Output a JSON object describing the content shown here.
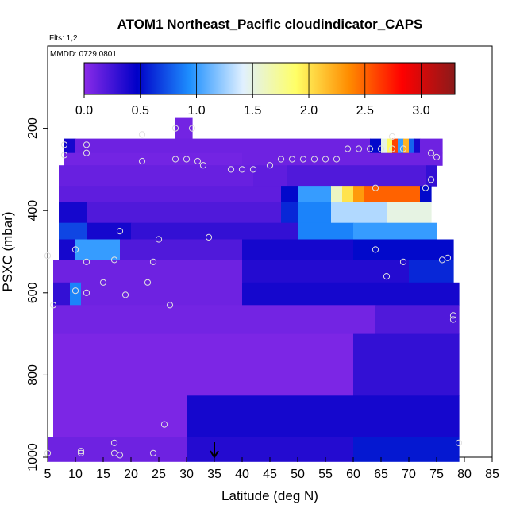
{
  "chart_data": {
    "type": "heatmap",
    "title": "ATOM1 Northeast_Pacific cloudindicator_CAPS",
    "flights_label": "Flts: 1,2",
    "date_label": "MMDD: 0729,0801",
    "xlabel": "Latitude (deg N)",
    "ylabel": "PSXC (mbar)",
    "xlim": [
      5,
      85
    ],
    "ylim": [
      1000,
      0
    ],
    "x_ticks": [
      5,
      10,
      15,
      20,
      25,
      30,
      35,
      40,
      45,
      50,
      55,
      60,
      65,
      70,
      75,
      80,
      85
    ],
    "y_ticks": [
      200,
      400,
      600,
      800,
      1000
    ],
    "colorbar": {
      "range": [
        0,
        3.3
      ],
      "ticks": [
        "0.0",
        "0.5",
        "1.0",
        "1.5",
        "2.0",
        "2.5",
        "3.0"
      ],
      "tick_values": [
        0,
        0.5,
        1.0,
        1.5,
        2.0,
        2.5,
        3.0
      ],
      "colors": [
        "#8b2be8",
        "#0000c8",
        "#1e90ff",
        "#e0f0ff",
        "#ffff66",
        "#ff8c00",
        "#ff0000",
        "#8b1a1a"
      ]
    },
    "marker_latitude": 35,
    "colors": {
      "axis": "#000000",
      "circle": "#e0e0e0",
      "background": "#ffffff"
    },
    "layers": [
      {
        "p": [
          175,
          225
        ],
        "cells": [
          [
            28,
            31,
            0.08
          ]
        ]
      },
      {
        "p": [
          225,
          260
        ],
        "cells": [
          [
            8,
            10,
            0.4
          ],
          [
            10,
            63,
            0.1
          ],
          [
            63,
            65,
            0.5
          ],
          [
            65,
            66,
            1.5
          ],
          [
            66,
            67,
            1.9
          ],
          [
            67,
            68,
            2.6
          ],
          [
            68,
            69,
            1.0
          ],
          [
            69,
            70,
            2.2
          ],
          [
            70,
            71,
            0.8
          ],
          [
            71,
            72,
            0.4
          ],
          [
            72,
            76,
            0.1
          ]
        ]
      },
      {
        "p": [
          260,
          290
        ],
        "cells": [
          [
            8,
            40,
            0.08
          ],
          [
            40,
            76,
            0.1
          ]
        ]
      },
      {
        "p": [
          290,
          340
        ],
        "cells": [
          [
            7,
            42,
            0.12
          ],
          [
            42,
            48,
            0.15
          ],
          [
            48,
            73,
            0.2
          ],
          [
            73,
            75,
            0.3
          ]
        ]
      },
      {
        "p": [
          340,
          380
        ],
        "cells": [
          [
            7,
            47,
            0.15
          ],
          [
            47,
            50,
            0.5
          ],
          [
            50,
            56,
            1.0
          ],
          [
            56,
            58,
            1.6
          ],
          [
            58,
            60,
            2.0
          ],
          [
            60,
            62,
            2.3
          ],
          [
            62,
            72,
            2.5
          ],
          [
            72,
            74,
            0.5
          ]
        ]
      },
      {
        "p": [
          380,
          430
        ],
        "cells": [
          [
            7,
            12,
            0.4
          ],
          [
            12,
            47,
            0.2
          ],
          [
            47,
            50,
            0.6
          ],
          [
            50,
            56,
            0.9
          ],
          [
            56,
            66,
            1.3
          ],
          [
            66,
            74,
            1.5
          ]
        ]
      },
      {
        "p": [
          430,
          470
        ],
        "cells": [
          [
            7,
            12,
            0.7
          ],
          [
            12,
            20,
            0.4
          ],
          [
            20,
            50,
            0.3
          ],
          [
            50,
            60,
            0.9
          ],
          [
            60,
            75,
            1.0
          ]
        ]
      },
      {
        "p": [
          470,
          520
        ],
        "cells": [
          [
            7,
            10,
            0.4
          ],
          [
            10,
            18,
            1.0
          ],
          [
            18,
            40,
            0.2
          ],
          [
            40,
            60,
            0.4
          ],
          [
            60,
            78,
            0.5
          ]
        ]
      },
      {
        "p": [
          520,
          575
        ],
        "cells": [
          [
            6,
            40,
            0.1
          ],
          [
            40,
            70,
            0.35
          ],
          [
            70,
            78,
            0.6
          ]
        ]
      },
      {
        "p": [
          575,
          630
        ],
        "cells": [
          [
            6,
            9,
            0.3
          ],
          [
            9,
            11,
            0.9
          ],
          [
            11,
            40,
            0.1
          ],
          [
            40,
            79,
            0.4
          ]
        ]
      },
      {
        "p": [
          630,
          700
        ],
        "cells": [
          [
            6,
            64,
            0.08
          ],
          [
            64,
            79,
            0.2
          ]
        ]
      },
      {
        "p": [
          700,
          850
        ],
        "cells": [
          [
            6,
            60,
            0.05
          ],
          [
            60,
            79,
            0.3
          ]
        ]
      },
      {
        "p": [
          850,
          950
        ],
        "cells": [
          [
            6,
            30,
            0.05
          ],
          [
            30,
            79,
            0.4
          ]
        ]
      },
      {
        "p": [
          950,
          1010
        ],
        "cells": [
          [
            5,
            30,
            0.1
          ],
          [
            30,
            60,
            0.35
          ],
          [
            60,
            79,
            0.55
          ]
        ]
      }
    ],
    "circles": [
      [
        8,
        240
      ],
      [
        8,
        265
      ],
      [
        12,
        240
      ],
      [
        12,
        260
      ],
      [
        22,
        215
      ],
      [
        22,
        280
      ],
      [
        28,
        200
      ],
      [
        31,
        200
      ],
      [
        28,
        275
      ],
      [
        30,
        275
      ],
      [
        32,
        280
      ],
      [
        33,
        290
      ],
      [
        38,
        300
      ],
      [
        40,
        300
      ],
      [
        42,
        300
      ],
      [
        45,
        290
      ],
      [
        47,
        275
      ],
      [
        49,
        275
      ],
      [
        51,
        275
      ],
      [
        53,
        275
      ],
      [
        55,
        275
      ],
      [
        57,
        275
      ],
      [
        59,
        250
      ],
      [
        61,
        250
      ],
      [
        63,
        250
      ],
      [
        65,
        250
      ],
      [
        67,
        250
      ],
      [
        69,
        250
      ],
      [
        67,
        220
      ],
      [
        74,
        260
      ],
      [
        75,
        270
      ],
      [
        64,
        345
      ],
      [
        73,
        345
      ],
      [
        74,
        325
      ],
      [
        10,
        495
      ],
      [
        18,
        450
      ],
      [
        25,
        470
      ],
      [
        34,
        465
      ],
      [
        64,
        495
      ],
      [
        5,
        510
      ],
      [
        12,
        525
      ],
      [
        17,
        520
      ],
      [
        24,
        525
      ],
      [
        69,
        525
      ],
      [
        66,
        560
      ],
      [
        77,
        515
      ],
      [
        76,
        520
      ],
      [
        15,
        575
      ],
      [
        23,
        575
      ],
      [
        10,
        595
      ],
      [
        12,
        600
      ],
      [
        19,
        605
      ],
      [
        6,
        630
      ],
      [
        27,
        630
      ],
      [
        78,
        655
      ],
      [
        78,
        665
      ],
      [
        26,
        920
      ],
      [
        17,
        965
      ],
      [
        17,
        990
      ],
      [
        18,
        995
      ],
      [
        24,
        990
      ],
      [
        11,
        985
      ],
      [
        11,
        990
      ],
      [
        5,
        990
      ],
      [
        79,
        965
      ]
    ]
  }
}
